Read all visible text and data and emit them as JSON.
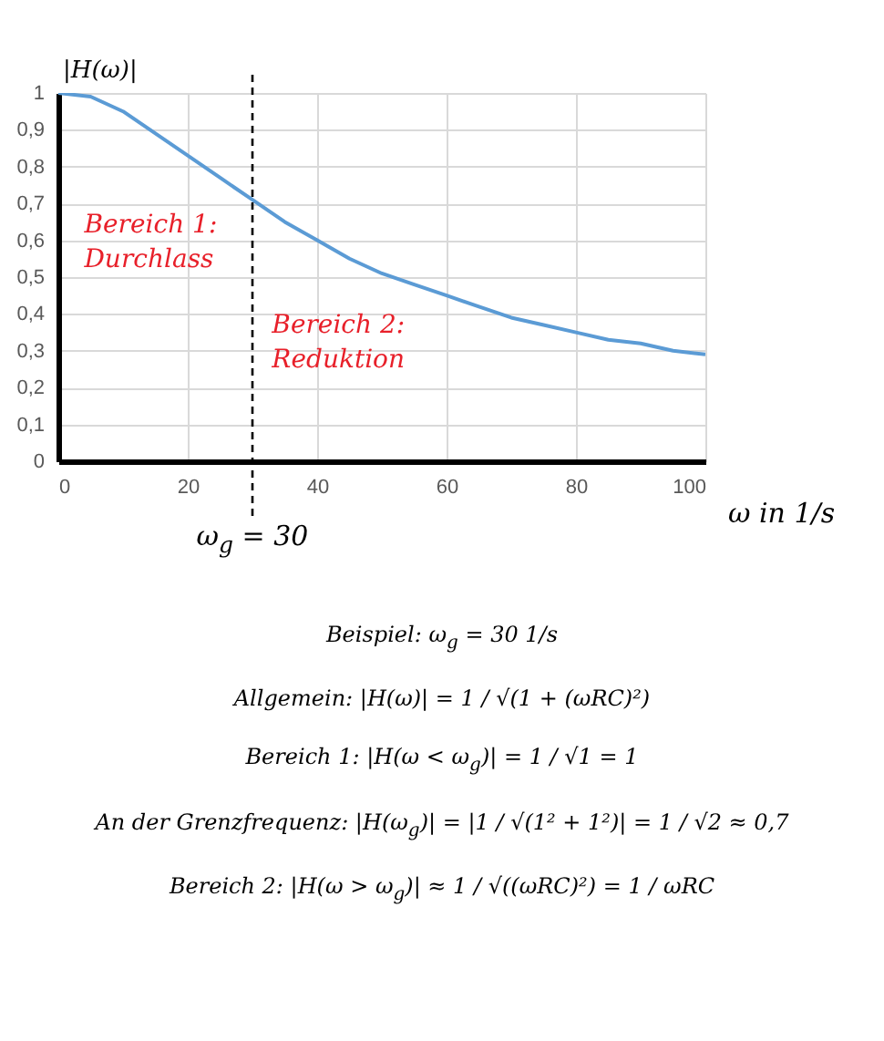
{
  "chart_data": {
    "type": "line",
    "ylabel": "|H(ω)|",
    "xlabel": "ω in 1/s",
    "x": [
      0,
      5,
      10,
      15,
      20,
      25,
      30,
      35,
      40,
      45,
      50,
      55,
      60,
      65,
      70,
      75,
      80,
      85,
      90,
      95,
      100
    ],
    "series": [
      {
        "color": "#5b9bd5",
        "values": [
          1.0,
          0.99,
          0.95,
          0.89,
          0.83,
          0.77,
          0.71,
          0.65,
          0.6,
          0.55,
          0.51,
          0.48,
          0.45,
          0.42,
          0.39,
          0.37,
          0.35,
          0.33,
          0.32,
          0.3,
          0.29
        ]
      }
    ],
    "xlim": [
      0,
      100
    ],
    "xticks": [
      0,
      20,
      40,
      60,
      80,
      100
    ],
    "ylim": [
      0,
      1
    ],
    "yticks": [
      0,
      {
        "value": 0.1,
        "label": "0,1"
      },
      {
        "value": 0.2,
        "label": "0,2"
      },
      {
        "value": 0.3,
        "label": "0,3"
      },
      {
        "value": 0.4,
        "label": "0,4"
      },
      {
        "value": 0.5,
        "label": "0,5"
      },
      {
        "value": 0.6,
        "label": "0,6"
      },
      {
        "value": 0.7,
        "label": "0,7"
      },
      {
        "value": 0.8,
        "label": "0,8"
      },
      {
        "value": 0.9,
        "label": "0,9"
      },
      1
    ],
    "grid": true,
    "marker": "none",
    "line_style": "solid",
    "ref_lines": [
      {
        "axis": "x",
        "value": 30,
        "label": "ω$_{g}$ = 30",
        "color": "#000000",
        "line_style": "dashed"
      }
    ],
    "annotations": [
      "Bereich 1:\nDurchlass",
      "Bereich 2:\nReduktion",
      "Beispiel: ω$_{g}$ = 30 1/s",
      "Allgemein: |H(ω)| = 1 / √(1 + (ωRC)²)",
      "Bereich 1: |H(ω < ω$_{g}$)| = 1 / √1 = 1",
      "An der Grenzfrequenz: |H(ω$_{g}$)| = |1 / √(1² + 1²)| = 1 / √2 ≈ 0,7",
      "Bereich 2: |H(ω > ω$_{g}$)| ≈ 1 / √((ωRC)²) = 1 / ωRC"
    ]
  }
}
